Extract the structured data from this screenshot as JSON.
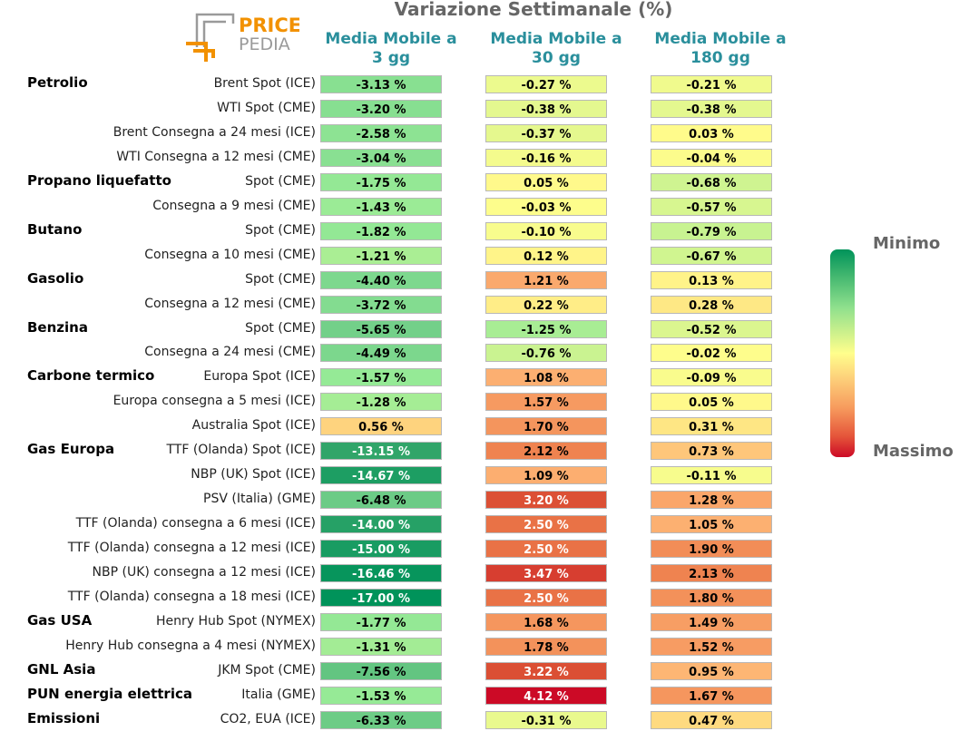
{
  "title": "Variazione Settimanale (%)",
  "logo": {
    "line1": "PRICE",
    "line2": "PEDIA"
  },
  "columns": [
    {
      "line1": "Media Mobile a",
      "line2": "3 gg"
    },
    {
      "line1": "Media Mobile a",
      "line2": "30 gg"
    },
    {
      "line1": "Media Mobile a",
      "line2": "180 gg"
    }
  ],
  "legend": {
    "min_label": "Minimo",
    "max_label": "Massimo"
  },
  "colors": {
    "min": "#00935a",
    "mid": "#fffe8c",
    "max": "#cc0a26",
    "header": "#2a8f9c"
  },
  "chart_data": {
    "type": "table",
    "title": "Variazione Settimanale (%)",
    "value_range": [
      -17.0,
      4.12
    ],
    "rows": [
      {
        "group": "Petrolio",
        "label": "Brent Spot (ICE)",
        "values": [
          -3.13,
          -0.27,
          -0.21
        ],
        "texts": [
          "-3.13 %",
          "-0.27 %",
          "-0.21 %"
        ]
      },
      {
        "group": "",
        "label": "WTI Spot (CME)",
        "values": [
          -3.2,
          -0.38,
          -0.38
        ],
        "texts": [
          "-3.20 %",
          "-0.38 %",
          "-0.38 %"
        ]
      },
      {
        "group": "",
        "label": "Brent Consegna a 24 mesi (ICE)",
        "values": [
          -2.58,
          -0.37,
          0.03
        ],
        "texts": [
          "-2.58 %",
          "-0.37 %",
          "0.03 %"
        ]
      },
      {
        "group": "",
        "label": "WTI Consegna a 12 mesi (CME)",
        "values": [
          -3.04,
          -0.16,
          -0.04
        ],
        "texts": [
          "-3.04 %",
          "-0.16 %",
          "-0.04 %"
        ]
      },
      {
        "group": "Propano liquefatto",
        "label": "Spot (CME)",
        "values": [
          -1.75,
          0.05,
          -0.68
        ],
        "texts": [
          "-1.75 %",
          "0.05 %",
          "-0.68 %"
        ]
      },
      {
        "group": "",
        "label": "Consegna a 9 mesi (CME)",
        "values": [
          -1.43,
          -0.03,
          -0.57
        ],
        "texts": [
          "-1.43 %",
          "-0.03 %",
          "-0.57 %"
        ]
      },
      {
        "group": "Butano",
        "label": "Spot (CME)",
        "values": [
          -1.82,
          -0.1,
          -0.79
        ],
        "texts": [
          "-1.82 %",
          "-0.10 %",
          "-0.79 %"
        ]
      },
      {
        "group": "",
        "label": "Consegna a 10 mesi (CME)",
        "values": [
          -1.21,
          0.12,
          -0.67
        ],
        "texts": [
          "-1.21 %",
          "0.12 %",
          "-0.67 %"
        ]
      },
      {
        "group": "Gasolio",
        "label": "Spot (CME)",
        "values": [
          -4.4,
          1.21,
          0.13
        ],
        "texts": [
          "-4.40 %",
          "1.21 %",
          "0.13 %"
        ]
      },
      {
        "group": "",
        "label": "Consegna a 12 mesi (CME)",
        "values": [
          -3.72,
          0.22,
          0.28
        ],
        "texts": [
          "-3.72 %",
          "0.22 %",
          "0.28 %"
        ]
      },
      {
        "group": "Benzina",
        "label": "Spot (CME)",
        "values": [
          -5.65,
          -1.25,
          -0.52
        ],
        "texts": [
          "-5.65 %",
          "-1.25 %",
          "-0.52 %"
        ]
      },
      {
        "group": "",
        "label": "Consegna a 24 mesi (CME)",
        "values": [
          -4.49,
          -0.76,
          -0.02
        ],
        "texts": [
          "-4.49 %",
          "-0.76 %",
          "-0.02 %"
        ]
      },
      {
        "group": "Carbone termico",
        "label": "Europa Spot (ICE)",
        "values": [
          -1.57,
          1.08,
          -0.09
        ],
        "texts": [
          "-1.57 %",
          "1.08 %",
          "-0.09 %"
        ]
      },
      {
        "group": "",
        "label": "Europa consegna a 5 mesi (ICE)",
        "values": [
          -1.28,
          1.57,
          0.05
        ],
        "texts": [
          "-1.28 %",
          "1.57 %",
          "0.05 %"
        ]
      },
      {
        "group": "",
        "label": "Australia Spot (ICE)",
        "values": [
          0.56,
          1.7,
          0.31
        ],
        "texts": [
          "0.56 %",
          "1.70 %",
          "0.31 %"
        ]
      },
      {
        "group": "Gas Europa",
        "label": "TTF (Olanda) Spot (ICE)",
        "values": [
          -13.15,
          2.12,
          0.73
        ],
        "texts": [
          "-13.15 %",
          "2.12 %",
          "0.73 %"
        ]
      },
      {
        "group": "",
        "label": "NBP (UK) Spot (ICE)",
        "values": [
          -14.67,
          1.09,
          -0.11
        ],
        "texts": [
          "-14.67 %",
          "1.09 %",
          "-0.11 %"
        ]
      },
      {
        "group": "",
        "label": "PSV (Italia) (GME)",
        "values": [
          -6.48,
          3.2,
          1.28
        ],
        "texts": [
          "-6.48 %",
          "3.20 %",
          "1.28 %"
        ]
      },
      {
        "group": "",
        "label": "TTF (Olanda) consegna a 6 mesi (ICE)",
        "values": [
          -14.0,
          2.5,
          1.05
        ],
        "texts": [
          "-14.00 %",
          "2.50 %",
          "1.05 %"
        ]
      },
      {
        "group": "",
        "label": "TTF (Olanda) consegna a 12 mesi (ICE)",
        "values": [
          -15.0,
          2.5,
          1.9
        ],
        "texts": [
          "-15.00 %",
          "2.50 %",
          "1.90 %"
        ]
      },
      {
        "group": "",
        "label": "NBP (UK) consegna a 12 mesi (ICE)",
        "values": [
          -16.46,
          3.47,
          2.13
        ],
        "texts": [
          "-16.46 %",
          "3.47 %",
          "2.13 %"
        ]
      },
      {
        "group": "",
        "label": "TTF (Olanda) consegna a 18 mesi (ICE)",
        "values": [
          -17.0,
          2.5,
          1.8
        ],
        "texts": [
          "-17.00 %",
          "2.50 %",
          "1.80 %"
        ]
      },
      {
        "group": "Gas USA",
        "label": "Henry Hub Spot (NYMEX)",
        "values": [
          -1.77,
          1.68,
          1.49
        ],
        "texts": [
          "-1.77 %",
          "1.68 %",
          "1.49 %"
        ]
      },
      {
        "group": "",
        "label": "Henry Hub consegna a 4 mesi (NYMEX)",
        "values": [
          -1.31,
          1.78,
          1.52
        ],
        "texts": [
          "-1.31 %",
          "1.78 %",
          "1.52 %"
        ]
      },
      {
        "group": "GNL Asia",
        "label": "JKM Spot (CME)",
        "values": [
          -7.56,
          3.22,
          0.95
        ],
        "texts": [
          "-7.56 %",
          "3.22 %",
          "0.95 %"
        ]
      },
      {
        "group": "PUN energia elettrica",
        "label": "Italia (GME)",
        "values": [
          -1.53,
          4.12,
          1.67
        ],
        "texts": [
          "-1.53 %",
          "4.12 %",
          "1.67 %"
        ]
      },
      {
        "group": "Emissioni",
        "label": "CO2, EUA (ICE)",
        "values": [
          -6.33,
          -0.31,
          0.47
        ],
        "texts": [
          "-6.33 %",
          "-0.31 %",
          "0.47 %"
        ]
      }
    ]
  }
}
